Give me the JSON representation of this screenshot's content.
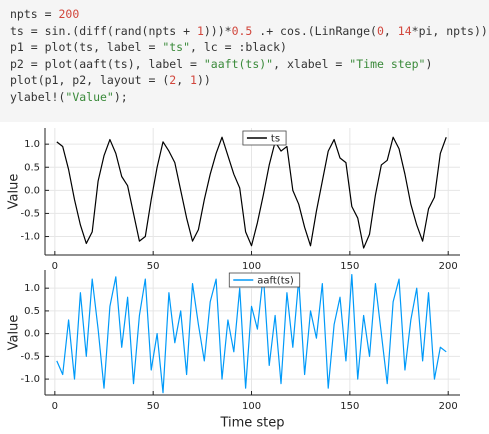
{
  "code": {
    "lines": [
      [
        {
          "text": "npts = "
        },
        {
          "text": "200",
          "color": "#d1453b"
        }
      ],
      [
        {
          "text": "ts = sin.(diff(rand(npts + "
        },
        {
          "text": "1",
          "color": "#d1453b"
        },
        {
          "text": ")))*"
        },
        {
          "text": "0.5",
          "color": "#d1453b"
        },
        {
          "text": " .+ cos.(LinRange("
        },
        {
          "text": "0",
          "color": "#d1453b"
        },
        {
          "text": ", "
        },
        {
          "text": "14",
          "color": "#d1453b"
        },
        {
          "text": "*pi, npts))"
        }
      ],
      [
        {
          "text": "p1 = plot(ts, label = "
        },
        {
          "text": "\"ts\"",
          "color": "#3a8a3a"
        },
        {
          "text": ", lc = :black)"
        }
      ],
      [
        {
          "text": "p2 = plot(aaft(ts), label = "
        },
        {
          "text": "\"aaft(ts)\"",
          "color": "#3a8a3a"
        },
        {
          "text": ", xlabel = "
        },
        {
          "text": "\"Time step\"",
          "color": "#3a8a3a"
        },
        {
          "text": ")"
        }
      ],
      [
        {
          "text": "plot(p1, p2, layout = ("
        },
        {
          "text": "2",
          "color": "#d1453b"
        },
        {
          "text": ", "
        },
        {
          "text": "1",
          "color": "#d1453b"
        },
        {
          "text": "))"
        }
      ],
      [
        {
          "text": "ylabel!("
        },
        {
          "text": "\"Value\"",
          "color": "#3a8a3a"
        },
        {
          "text": ");"
        }
      ]
    ]
  },
  "chart_data": [
    {
      "type": "line",
      "ylabel": "Value",
      "legend": "top",
      "grid": true,
      "x": [
        1,
        4,
        7,
        10,
        13,
        16,
        19,
        22,
        25,
        28,
        31,
        34,
        37,
        40,
        43,
        46,
        49,
        52,
        55,
        58,
        61,
        64,
        67,
        70,
        73,
        76,
        79,
        82,
        85,
        88,
        91,
        94,
        97,
        100,
        103,
        106,
        109,
        112,
        115,
        118,
        121,
        124,
        127,
        130,
        133,
        136,
        139,
        142,
        145,
        148,
        151,
        154,
        157,
        160,
        163,
        166,
        169,
        172,
        175,
        178,
        181,
        184,
        187,
        190,
        193,
        196,
        199
      ],
      "series": [
        {
          "name": "ts",
          "color": "#000000",
          "values": [
            1.05,
            0.95,
            0.45,
            -0.2,
            -0.75,
            -1.15,
            -0.9,
            0.2,
            0.75,
            1.1,
            0.8,
            0.3,
            0.1,
            -0.5,
            -1.1,
            -1.0,
            -0.2,
            0.5,
            1.05,
            0.85,
            0.6,
            0.0,
            -0.6,
            -1.1,
            -0.85,
            -0.2,
            0.35,
            0.8,
            1.15,
            0.75,
            0.35,
            0.05,
            -0.9,
            -1.2,
            -0.7,
            -0.1,
            0.55,
            1.05,
            0.85,
            0.95,
            0.0,
            -0.3,
            -0.8,
            -1.2,
            -0.45,
            0.2,
            0.85,
            1.1,
            0.7,
            0.6,
            -0.35,
            -0.6,
            -1.25,
            -0.95,
            -0.1,
            0.55,
            0.65,
            1.15,
            0.9,
            0.35,
            -0.3,
            -0.75,
            -1.1,
            -0.4,
            -0.15,
            0.8,
            1.15
          ]
        }
      ],
      "xlim": [
        -5,
        206
      ],
      "xticks": [
        0,
        50,
        100,
        150,
        200
      ],
      "ylim": [
        -1.4,
        1.35
      ],
      "yticks": [
        {
          "value": 1,
          "label": "1.0"
        },
        0.5,
        {
          "value": 0,
          "label": "0.0"
        },
        -0.5,
        {
          "value": -1,
          "label": "-1.0"
        }
      ]
    },
    {
      "type": "line",
      "ylabel": "Value",
      "xlabel": "Time step",
      "legend": "top",
      "grid": true,
      "x": [
        1,
        4,
        7,
        10,
        13,
        16,
        19,
        22,
        25,
        28,
        31,
        34,
        37,
        40,
        43,
        46,
        49,
        52,
        55,
        58,
        61,
        64,
        67,
        70,
        73,
        76,
        79,
        82,
        85,
        88,
        91,
        94,
        97,
        100,
        103,
        106,
        109,
        112,
        115,
        118,
        121,
        124,
        127,
        130,
        133,
        136,
        139,
        142,
        145,
        148,
        151,
        154,
        157,
        160,
        163,
        166,
        169,
        172,
        175,
        178,
        181,
        184,
        187,
        190,
        193,
        196,
        199
      ],
      "series": [
        {
          "name": "aaft(ts)",
          "color": "#009af9",
          "values": [
            -0.6,
            -0.9,
            0.3,
            -1.0,
            0.9,
            -0.5,
            1.2,
            0.1,
            -1.2,
            0.6,
            1.25,
            -0.3,
            0.8,
            -1.1,
            0.4,
            1.2,
            -0.8,
            0.0,
            -1.3,
            0.9,
            -0.2,
            0.5,
            -0.9,
            1.1,
            0.2,
            -0.6,
            0.7,
            1.2,
            -1.0,
            0.3,
            -0.4,
            1.0,
            -1.2,
            0.6,
            0.1,
            1.3,
            -0.7,
            0.4,
            -1.1,
            0.9,
            -0.3,
            1.2,
            -0.9,
            0.5,
            -0.1,
            1.1,
            -1.2,
            0.2,
            0.8,
            -0.6,
            1.3,
            -1.0,
            0.4,
            -0.5,
            1.1,
            0.0,
            -1.1,
            0.7,
            1.2,
            -0.8,
            0.3,
            1.0,
            -0.6,
            0.9,
            -1.0,
            -0.3,
            -0.4
          ]
        }
      ],
      "xlim": [
        -5,
        206
      ],
      "xticks": [
        0,
        50,
        100,
        150,
        200
      ],
      "ylim": [
        -1.35,
        1.4
      ],
      "yticks": [
        {
          "value": 1,
          "label": "1.0"
        },
        0.5,
        {
          "value": 0,
          "label": "0.0"
        },
        -0.5,
        {
          "value": -1,
          "label": "-1.0"
        }
      ]
    }
  ]
}
